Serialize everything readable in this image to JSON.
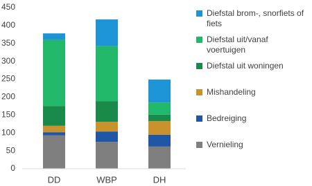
{
  "chart_data": {
    "type": "stacked_bar",
    "categories": [
      "DD",
      "WBP",
      "DH"
    ],
    "series": [
      {
        "name": "Vernieling",
        "color": "#7f7f7f",
        "values": [
          93,
          75,
          62
        ]
      },
      {
        "name": "Bedreiging",
        "color": "#1f56a6",
        "values": [
          9,
          29,
          33
        ]
      },
      {
        "name": "Mishandeling",
        "color": "#c9922c",
        "values": [
          18,
          27,
          38
        ]
      },
      {
        "name": "Diefstal uit woningen",
        "color": "#1a8a4a",
        "values": [
          55,
          58,
          18
        ]
      },
      {
        "name": "Diefstal uit/vanaf voertuigen",
        "color": "#22b86a",
        "values": [
          185,
          154,
          34
        ]
      },
      {
        "name": "Diefstal brom-, snorfiets of fiets",
        "color": "#1c94d6",
        "values": [
          18,
          74,
          64
        ]
      }
    ],
    "ylim": [
      0,
      450
    ],
    "yticks": [
      0,
      50,
      100,
      150,
      200,
      250,
      300,
      350,
      400,
      450
    ],
    "grid": false,
    "legend": "right"
  }
}
